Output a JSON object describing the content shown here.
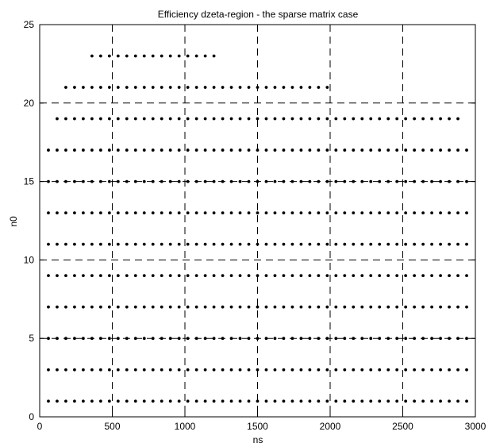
{
  "chart_data": {
    "type": "scatter",
    "title": "Efficiency dzeta-region - the sparse matrix case",
    "xlabel": "ns",
    "ylabel": "n0",
    "xlim": [
      0,
      3000
    ],
    "ylim": [
      0,
      25
    ],
    "xticks": [
      0,
      500,
      1000,
      1500,
      2000,
      2500,
      3000
    ],
    "yticks": [
      0,
      5,
      10,
      15,
      20,
      25
    ],
    "grid": true,
    "grid_style": "dashed",
    "marker": "dot",
    "marker_color": "#000000",
    "x_step": 60,
    "rows": [
      {
        "n0": 1,
        "ns_start": 60,
        "ns_end": 2940
      },
      {
        "n0": 3,
        "ns_start": 60,
        "ns_end": 2940
      },
      {
        "n0": 5,
        "ns_start": 60,
        "ns_end": 2940
      },
      {
        "n0": 7,
        "ns_start": 60,
        "ns_end": 2940
      },
      {
        "n0": 9,
        "ns_start": 60,
        "ns_end": 2940
      },
      {
        "n0": 11,
        "ns_start": 60,
        "ns_end": 2940
      },
      {
        "n0": 13,
        "ns_start": 60,
        "ns_end": 2940
      },
      {
        "n0": 15,
        "ns_start": 60,
        "ns_end": 2940
      },
      {
        "n0": 17,
        "ns_start": 60,
        "ns_end": 2940
      },
      {
        "n0": 19,
        "ns_start": 120,
        "ns_end": 2880
      },
      {
        "n0": 21,
        "ns_start": 180,
        "ns_end": 2000
      },
      {
        "n0": 23,
        "ns_start": 360,
        "ns_end": 1210
      }
    ]
  }
}
